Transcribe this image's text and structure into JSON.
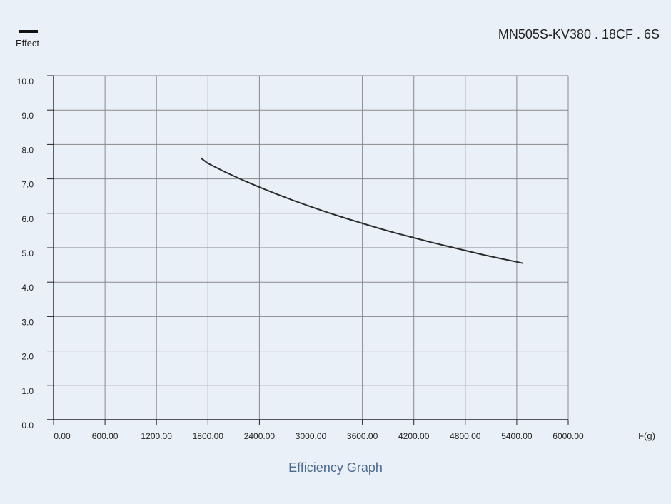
{
  "chart_data": {
    "type": "line",
    "title": "MN505S-KV380 . 18CF . 6S",
    "caption": "Efficiency Graph",
    "xlabel": "F(g)",
    "ylabel": "",
    "legend_position": "top-left",
    "grid": true,
    "xlim": [
      0,
      6000
    ],
    "ylim": [
      0,
      10
    ],
    "x_ticks": [
      "0.00",
      "600.00",
      "1200.00",
      "1800.00",
      "2400.00",
      "3000.00",
      "3600.00",
      "4200.00",
      "4800.00",
      "5400.00",
      "6000.00"
    ],
    "y_ticks": [
      "0.0",
      "1.0",
      "2.0",
      "3.0",
      "4.0",
      "5.0",
      "6.0",
      "7.0",
      "8.0",
      "9.0",
      "10.0"
    ],
    "series": [
      {
        "name": "Effect",
        "color": "#2b2b2b",
        "x": [
          1720,
          1800,
          2000,
          2200,
          2400,
          2600,
          2800,
          3000,
          3200,
          3400,
          3600,
          3800,
          4000,
          4200,
          4400,
          4600,
          4800,
          5000,
          5200,
          5400,
          5470
        ],
        "y": [
          7.6,
          7.45,
          7.2,
          6.97,
          6.76,
          6.56,
          6.37,
          6.19,
          6.02,
          5.86,
          5.71,
          5.56,
          5.42,
          5.29,
          5.16,
          5.04,
          4.92,
          4.8,
          4.69,
          4.59,
          4.55
        ]
      }
    ]
  }
}
